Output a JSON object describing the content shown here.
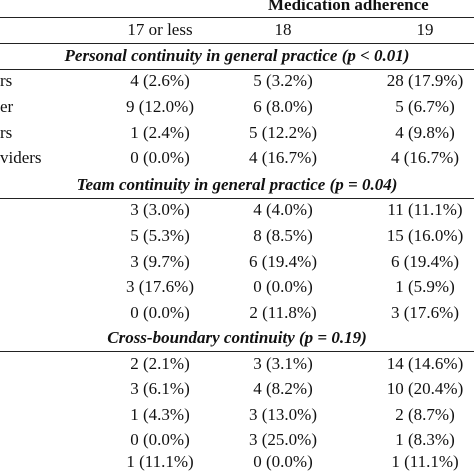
{
  "header": {
    "title": "Medication adherence",
    "columns": [
      "17 or less",
      "18",
      "19"
    ]
  },
  "sections": [
    {
      "title": "Personal continuity in general practice (p < 0.01)",
      "rows": [
        {
          "label": "rs",
          "cells": [
            "4 (2.6%)",
            "5 (3.2%)",
            "28 (17.9%)"
          ]
        },
        {
          "label": "er",
          "cells": [
            "9 (12.0%)",
            "6 (8.0%)",
            "5 (6.7%)"
          ]
        },
        {
          "label": "rs",
          "cells": [
            "1 (2.4%)",
            "5 (12.2%)",
            "4 (9.8%)"
          ]
        },
        {
          "label": "viders",
          "cells": [
            "0 (0.0%)",
            "4 (16.7%)",
            "4 (16.7%)"
          ]
        }
      ]
    },
    {
      "title": "Team continuity in general practice (p = 0.04)",
      "rows": [
        {
          "label": "",
          "cells": [
            "3 (3.0%)",
            "4 (4.0%)",
            "11 (11.1%)"
          ]
        },
        {
          "label": "",
          "cells": [
            "5 (5.3%)",
            "8 (8.5%)",
            "15 (16.0%)"
          ]
        },
        {
          "label": "",
          "cells": [
            "3 (9.7%)",
            "6 (19.4%)",
            "6 (19.4%)"
          ]
        },
        {
          "label": "",
          "cells": [
            "3 (17.6%)",
            "0 (0.0%)",
            "1 (5.9%)"
          ]
        },
        {
          "label": "",
          "cells": [
            "0 (0.0%)",
            "2 (11.8%)",
            "3 (17.6%)"
          ]
        }
      ]
    },
    {
      "title": "Cross-boundary continuity (p = 0.19)",
      "rows": [
        {
          "label": "",
          "cells": [
            "2 (2.1%)",
            "3 (3.1%)",
            "14 (14.6%)"
          ]
        },
        {
          "label": "",
          "cells": [
            "3 (6.1%)",
            "4 (8.2%)",
            "10 (20.4%)"
          ]
        },
        {
          "label": "",
          "cells": [
            "1 (4.3%)",
            "3 (13.0%)",
            "2 (8.7%)"
          ]
        },
        {
          "label": "",
          "cells": [
            "0 (0.0%)",
            "3 (25.0%)",
            "1 (8.3%)"
          ]
        },
        {
          "label": "",
          "cells": [
            "1 (11.1%)",
            "0 (0.0%)",
            "1 (11.1%)"
          ]
        }
      ]
    }
  ]
}
